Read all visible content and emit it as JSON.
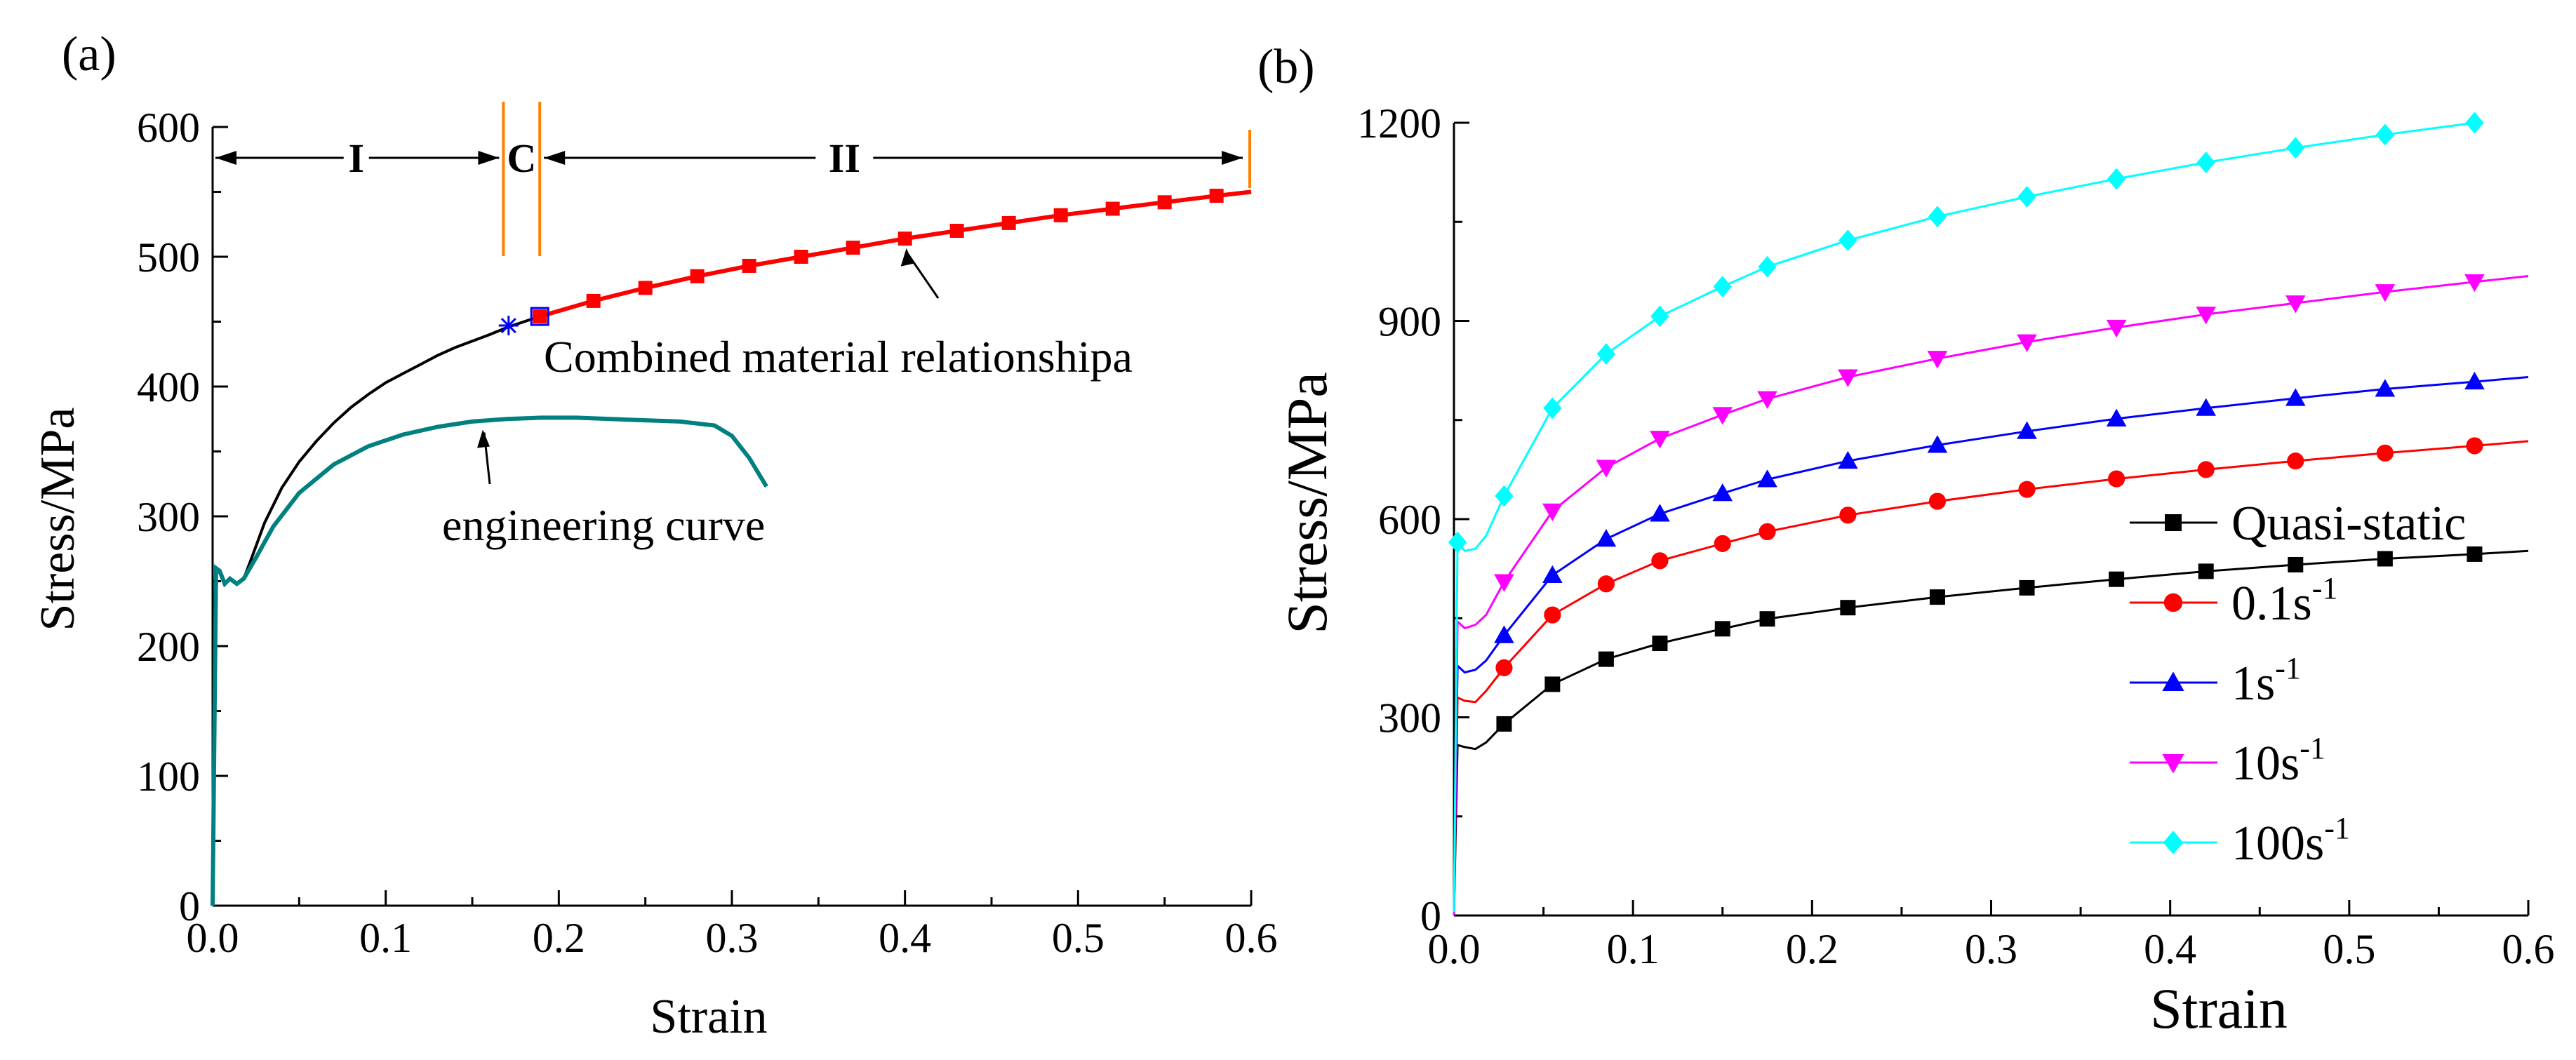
{
  "panels": {
    "a": {
      "label": "(a)"
    },
    "b": {
      "label": "(b)"
    }
  },
  "colors": {
    "quasi_static": "#000000",
    "rate_0_1": "#ff0000",
    "rate_1": "#0000ff",
    "rate_10": "#ff00ff",
    "rate_100": "#00ffff",
    "engineering": "#008080",
    "region_lines": "#ff8000",
    "combined": "#ff0000",
    "cross_marker": "#0000ff"
  },
  "chart_data": [
    {
      "panel": "(a)",
      "type": "line",
      "xlabel": "Strain",
      "ylabel": "Stress/MPa",
      "xlim": [
        0,
        0.6
      ],
      "ylim": [
        0,
        600
      ],
      "xticks": [
        "0.0",
        "0.1",
        "0.2",
        "0.3",
        "0.4",
        "0.5",
        "0.6"
      ],
      "yticks": [
        "0",
        "100",
        "200",
        "300",
        "400",
        "500",
        "600"
      ],
      "regions": [
        {
          "label": "I",
          "from": 0,
          "to": 0.168
        },
        {
          "label": "C",
          "from": 0.168,
          "to": 0.189
        },
        {
          "label": "II",
          "from": 0.189,
          "to": 0.6
        }
      ],
      "annotations": [
        {
          "text": "Combined material relationshipa",
          "x": 0.186,
          "y": 425,
          "arrow_to": [
            0.4,
            512
          ]
        },
        {
          "text": "engineering curve",
          "x": 0.13,
          "y": 290,
          "arrow_to": [
            0.155,
            370
          ]
        }
      ],
      "series": [
        {
          "role": "true-stress",
          "x": [
            0,
            0.002,
            0.004,
            0.007,
            0.01,
            0.014,
            0.018,
            0.022,
            0.03,
            0.04,
            0.05,
            0.06,
            0.07,
            0.08,
            0.09,
            0.1,
            0.11,
            0.12,
            0.13,
            0.14,
            0.15,
            0.16,
            0.171,
            0.18,
            0.189
          ],
          "y": [
            0,
            260,
            258,
            248,
            252,
            248,
            252,
            266,
            295,
            322,
            342,
            358,
            372,
            384,
            394,
            403,
            410,
            417,
            424,
            430,
            435,
            440,
            446,
            450,
            454
          ]
        },
        {
          "role": "combined",
          "x": [
            0.189,
            0.22,
            0.25,
            0.28,
            0.31,
            0.34,
            0.37,
            0.4,
            0.43,
            0.46,
            0.49,
            0.52,
            0.55,
            0.58,
            0.6
          ],
          "y": [
            454,
            466,
            476,
            485,
            493,
            500,
            507,
            514,
            520,
            526,
            532,
            537,
            542,
            547,
            550
          ]
        },
        {
          "role": "engineering",
          "x": [
            0,
            0.002,
            0.004,
            0.007,
            0.01,
            0.014,
            0.018,
            0.025,
            0.035,
            0.05,
            0.07,
            0.09,
            0.11,
            0.13,
            0.15,
            0.17,
            0.19,
            0.21,
            0.23,
            0.25,
            0.27,
            0.29,
            0.3,
            0.31,
            0.32
          ],
          "y": [
            0,
            260,
            258,
            248,
            252,
            248,
            252,
            268,
            292,
            318,
            340,
            354,
            363,
            369,
            373,
            375,
            376,
            376,
            375,
            374,
            373,
            370,
            362,
            345,
            323
          ]
        },
        {
          "role": "cross-marker",
          "x": [
            0.171
          ],
          "y": [
            447
          ]
        }
      ]
    },
    {
      "panel": "(b)",
      "type": "line",
      "xlabel": "Strain",
      "ylabel": "Stress/MPa",
      "xlim": [
        0,
        0.6
      ],
      "ylim": [
        0,
        1200
      ],
      "xticks": [
        "0.0",
        "0.1",
        "0.2",
        "0.3",
        "0.4",
        "0.5",
        "0.6"
      ],
      "yticks": [
        "0",
        "300",
        "600",
        "900",
        "1200"
      ],
      "legend_placement": "bottom-right",
      "series": [
        {
          "name": "Quasi-static",
          "marker": "square",
          "x": [
            0,
            0.002,
            0.006,
            0.012,
            0.018,
            0.028,
            0.055,
            0.085,
            0.115,
            0.15,
            0.175,
            0.22,
            0.27,
            0.32,
            0.37,
            0.42,
            0.47,
            0.52,
            0.57,
            0.6
          ],
          "y": [
            0,
            258,
            255,
            252,
            262,
            290,
            350,
            388,
            412,
            434,
            449,
            466,
            482,
            496,
            509,
            521,
            531,
            540,
            547,
            552
          ],
          "markers_x": [
            0.028,
            0.055,
            0.085,
            0.115,
            0.15,
            0.175,
            0.22,
            0.27,
            0.32,
            0.37,
            0.42,
            0.47,
            0.52,
            0.57
          ]
        },
        {
          "name": "0.1s",
          "superscript": "-1",
          "marker": "circle",
          "x": [
            0,
            0.002,
            0.006,
            0.012,
            0.018,
            0.028,
            0.055,
            0.085,
            0.115,
            0.15,
            0.175,
            0.22,
            0.27,
            0.32,
            0.37,
            0.42,
            0.47,
            0.52,
            0.57,
            0.6
          ],
          "y": [
            0,
            330,
            325,
            323,
            340,
            375,
            455,
            502,
            537,
            563,
            581,
            606,
            627,
            645,
            661,
            675,
            688,
            700,
            711,
            718
          ],
          "markers_x": [
            0.028,
            0.055,
            0.085,
            0.115,
            0.15,
            0.175,
            0.22,
            0.27,
            0.32,
            0.37,
            0.42,
            0.47,
            0.52,
            0.57
          ]
        },
        {
          "name": "1s",
          "superscript": "-1",
          "marker": "triangle-up",
          "x": [
            0,
            0.002,
            0.006,
            0.012,
            0.018,
            0.028,
            0.055,
            0.085,
            0.115,
            0.15,
            0.175,
            0.22,
            0.27,
            0.32,
            0.37,
            0.42,
            0.47,
            0.52,
            0.57,
            0.6
          ],
          "y": [
            0,
            378,
            368,
            372,
            386,
            424,
            515,
            570,
            608,
            639,
            660,
            688,
            712,
            733,
            752,
            768,
            783,
            797,
            808,
            815
          ],
          "markers_x": [
            0.028,
            0.055,
            0.085,
            0.115,
            0.15,
            0.175,
            0.22,
            0.27,
            0.32,
            0.37,
            0.42,
            0.47,
            0.52,
            0.57
          ]
        },
        {
          "name": "10s",
          "superscript": "-1",
          "marker": "triangle-down",
          "x": [
            0,
            0.002,
            0.006,
            0.012,
            0.018,
            0.028,
            0.055,
            0.085,
            0.115,
            0.15,
            0.175,
            0.22,
            0.27,
            0.32,
            0.37,
            0.42,
            0.47,
            0.52,
            0.57,
            0.6
          ],
          "y": [
            0,
            445,
            435,
            440,
            455,
            505,
            612,
            678,
            722,
            758,
            782,
            815,
            843,
            868,
            890,
            910,
            927,
            944,
            959,
            968
          ],
          "markers_x": [
            0.028,
            0.055,
            0.085,
            0.115,
            0.15,
            0.175,
            0.22,
            0.27,
            0.32,
            0.37,
            0.42,
            0.47,
            0.52,
            0.57
          ]
        },
        {
          "name": "100s",
          "superscript": "-1",
          "marker": "diamond",
          "x": [
            0,
            0.002,
            0.006,
            0.012,
            0.018,
            0.028,
            0.055,
            0.085,
            0.115,
            0.15,
            0.175,
            0.22,
            0.27,
            0.32,
            0.37,
            0.42,
            0.47,
            0.52,
            0.57
          ],
          "y": [
            5,
            565,
            552,
            555,
            575,
            635,
            768,
            850,
            907,
            952,
            982,
            1022,
            1058,
            1088,
            1115,
            1140,
            1162,
            1182,
            1200
          ],
          "markers_x": [
            0.002,
            0.028,
            0.055,
            0.085,
            0.115,
            0.15,
            0.175,
            0.22,
            0.27,
            0.32,
            0.37,
            0.42,
            0.47,
            0.52,
            0.57
          ]
        }
      ]
    }
  ]
}
